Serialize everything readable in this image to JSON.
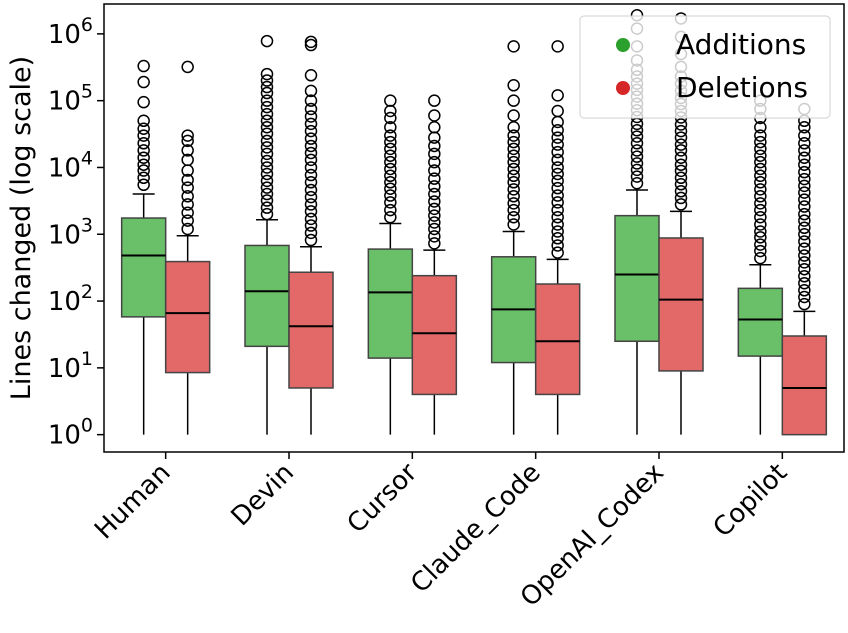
{
  "chart_data": {
    "type": "boxplot",
    "ylabel": "Lines changed (log scale)",
    "yscale": "log",
    "ylim": [
      0.55,
      2800000
    ],
    "yticks": [
      {
        "value": 1,
        "base": "10",
        "exp": "0"
      },
      {
        "value": 10,
        "base": "10",
        "exp": "1"
      },
      {
        "value": 100,
        "base": "10",
        "exp": "2"
      },
      {
        "value": 1000,
        "base": "10",
        "exp": "3"
      },
      {
        "value": 10000,
        "base": "10",
        "exp": "4"
      },
      {
        "value": 100000,
        "base": "10",
        "exp": "5"
      },
      {
        "value": 1000000,
        "base": "10",
        "exp": "6"
      }
    ],
    "categories": [
      "Human",
      "Devin",
      "Cursor",
      "Claude_Code",
      "OpenAI_Codex",
      "Copilot"
    ],
    "legend": {
      "position": "top-right"
    },
    "series": [
      {
        "name": "Additions",
        "color": "#6abf69",
        "legend_color": "#2ca02c",
        "boxes": [
          {
            "whislo": 1,
            "q1": 58,
            "med": 480,
            "q3": 1750,
            "whishi": 4000,
            "fliers": [
              5500,
              7000,
              9000,
              11000,
              14000,
              18000,
              23000,
              30000,
              38000,
              50000,
              95000,
              190000,
              330000
            ]
          },
          {
            "whislo": 1,
            "q1": 21,
            "med": 140,
            "q3": 680,
            "whishi": 1650,
            "fliers": [
              2000,
              2500,
              3200,
              4000,
              5000,
              6300,
              8000,
              10000,
              12500,
              16000,
              20000,
              25000,
              32000,
              40000,
              50000,
              63000,
              80000,
              100000,
              130000,
              160000,
              200000,
              250000,
              780000
            ]
          },
          {
            "whislo": 1,
            "q1": 14,
            "med": 135,
            "q3": 600,
            "whishi": 1450,
            "fliers": [
              1800,
              2300,
              3000,
              3800,
              4800,
              6000,
              7500,
              9500,
              12000,
              15000,
              19000,
              24000,
              30000,
              40000,
              55000,
              70000,
              100000
            ]
          },
          {
            "whislo": 1,
            "q1": 12,
            "med": 75,
            "q3": 460,
            "whishi": 1100,
            "fliers": [
              1400,
              1800,
              2300,
              2900,
              3700,
              4700,
              6000,
              7500,
              9500,
              12000,
              15000,
              19000,
              24000,
              30000,
              40000,
              60000,
              100000,
              170000,
              650000
            ]
          },
          {
            "whislo": 1,
            "q1": 25,
            "med": 250,
            "q3": 1900,
            "whishi": 4600,
            "fliers": [
              5800,
              7300,
              9200,
              11500,
              14500,
              18000,
              23000,
              29000,
              36000,
              45000,
              57000,
              72000,
              90000,
              115000,
              145000,
              180000,
              230000,
              290000,
              400000,
              650000,
              1200000,
              1900000
            ]
          },
          {
            "whislo": 1,
            "q1": 15,
            "med": 53,
            "q3": 155,
            "whishi": 350,
            "fliers": [
              440,
              560,
              700,
              900,
              1100,
              1400,
              1800,
              2300,
              2900,
              3700,
              4700,
              6000,
              7500,
              9500,
              12000,
              15000,
              19000,
              24000,
              30000,
              40000,
              55000,
              75000,
              100000
            ]
          }
        ]
      },
      {
        "name": "Deletions",
        "color": "#e36868",
        "legend_color": "#d62728",
        "boxes": [
          {
            "whislo": 1,
            "q1": 8.5,
            "med": 66,
            "q3": 390,
            "whishi": 950,
            "fliers": [
              1200,
              1600,
              2100,
              2800,
              3700,
              5000,
              6500,
              9000,
              13000,
              18000,
              25000,
              30000,
              320000
            ]
          },
          {
            "whislo": 1,
            "q1": 5,
            "med": 42,
            "q3": 270,
            "whishi": 650,
            "fliers": [
              820,
              1050,
              1350,
              1700,
              2200,
              2800,
              3600,
              4600,
              6000,
              7700,
              10000,
              13000,
              16500,
              21000,
              27000,
              35000,
              45000,
              58000,
              75000,
              100000,
              140000,
              240000,
              680000,
              760000
            ]
          },
          {
            "whislo": 1,
            "q1": 4,
            "med": 33,
            "q3": 240,
            "whishi": 580,
            "fliers": [
              730,
              930,
              1200,
              1500,
              1900,
              2400,
              3100,
              4000,
              5200,
              6800,
              9000,
              12000,
              16000,
              21000,
              28000,
              40000,
              60000,
              100000
            ]
          },
          {
            "whislo": 1,
            "q1": 4,
            "med": 25,
            "q3": 180,
            "whishi": 420,
            "fliers": [
              530,
              680,
              870,
              1100,
              1400,
              1800,
              2300,
              3000,
              3800,
              4900,
              6300,
              8000,
              10000,
              13000,
              17000,
              22000,
              28000,
              36000,
              48000,
              70000,
              120000,
              650000
            ]
          },
          {
            "whislo": 1,
            "q1": 9,
            "med": 105,
            "q3": 880,
            "whishi": 2200,
            "fliers": [
              2800,
              3500,
              4400,
              5600,
              7000,
              8900,
              11000,
              14000,
              18000,
              22000,
              28000,
              35000,
              44000,
              56000,
              70000,
              89000,
              110000,
              140000,
              180000,
              230000,
              320000,
              500000,
              900000,
              1700000
            ]
          },
          {
            "whislo": 1,
            "q1": 1,
            "med": 5,
            "q3": 30,
            "whishi": 70,
            "fliers": [
              90,
              115,
              145,
              185,
              235,
              300,
              380,
              480,
              610,
              780,
              1000,
              1250,
              1600,
              2000,
              2600,
              3300,
              4200,
              5300,
              6700,
              8500,
              11000,
              14000,
              18000,
              23000,
              30000,
              40000,
              50000,
              75000
            ]
          }
        ]
      }
    ]
  }
}
